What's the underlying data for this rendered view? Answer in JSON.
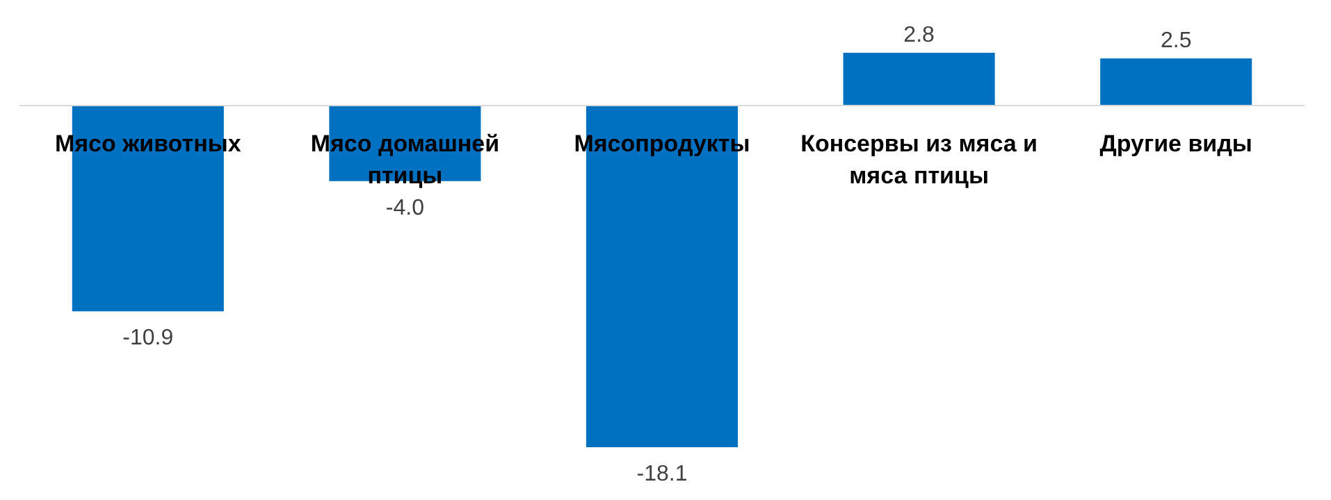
{
  "chart_data": {
    "type": "bar",
    "categories": [
      "Мясо животных",
      "Мясо домашней птицы",
      "Мясопродукты",
      "Консервы из мяса и мяса птицы",
      "Другие виды"
    ],
    "values": [
      -10.9,
      -4.0,
      -18.1,
      2.8,
      2.5
    ],
    "value_labels": [
      "-10.9",
      "-4.0",
      "-18.1",
      "2.8",
      "2.5"
    ],
    "color": "#0070c0"
  }
}
